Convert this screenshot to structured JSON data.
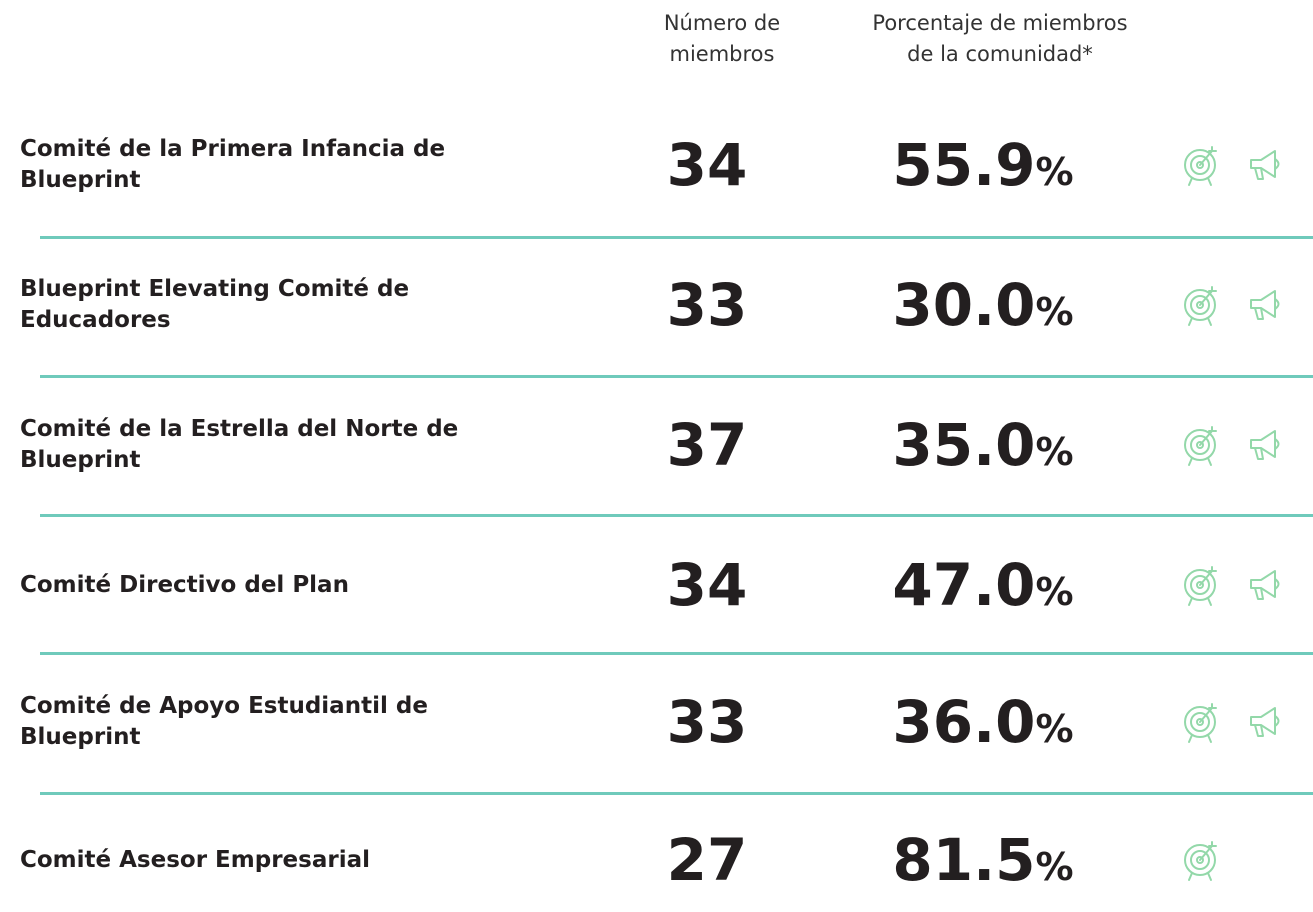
{
  "header": {
    "members": [
      "Número de",
      "miembros"
    ],
    "percentage": [
      "Porcentaje de miembros",
      "de la comunidad*"
    ]
  },
  "table": {
    "rows": [
      {
        "name": [
          "Comité de la Primera Infancia de",
          "Blueprint"
        ],
        "members": "34",
        "percentage": "55.9%"
      },
      {
        "name": [
          "Blueprint Elevating Comité de",
          "Educadores"
        ],
        "members": "33",
        "percentage": "30.0%"
      },
      {
        "name": [
          "Comité de la Estrella del Norte de",
          "Blueprint"
        ],
        "members": "37",
        "percentage": "35.0%"
      },
      {
        "name": [
          "Comité Directivo del Plan"
        ],
        "members": "34",
        "percentage": "47.0%"
      },
      {
        "name": [
          "Comité de Apoyo Estudiantil de",
          "Blueprint"
        ],
        "members": "33",
        "percentage": "36.0%"
      },
      {
        "name": [
          "Comité Asesor Empresarial"
        ],
        "members": "27",
        "percentage": "81.5%"
      }
    ]
  }
}
